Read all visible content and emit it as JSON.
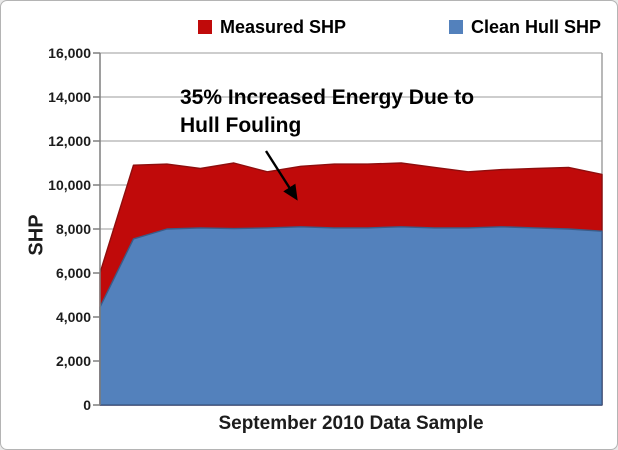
{
  "legend": {
    "measured_label": "Measured SHP",
    "clean_label": "Clean Hull SHP"
  },
  "chart_data": {
    "type": "area",
    "title": "",
    "xlabel": "September 2010 Data Sample",
    "ylabel": "SHP",
    "ylim": [
      0,
      16000
    ],
    "y_ticks": [
      "0",
      "2,000",
      "4,000",
      "6,000",
      "8,000",
      "10,000",
      "12,000",
      "14,000",
      "16,000"
    ],
    "y_tick_values": [
      0,
      2000,
      4000,
      6000,
      8000,
      10000,
      12000,
      14000,
      16000
    ],
    "x": [
      1,
      2,
      3,
      4,
      5,
      6,
      7,
      8,
      9,
      10,
      11,
      12,
      13,
      14,
      15,
      16
    ],
    "x_tick_labels": [],
    "grid": "horizontal",
    "legend_position": "top",
    "series": [
      {
        "name": "Measured SHP",
        "color": "#c00a0a",
        "stroke": "#8e0e0e",
        "values": [
          6000,
          10900,
          10950,
          10750,
          11000,
          10600,
          10850,
          10950,
          10950,
          11000,
          10800,
          10600,
          10700,
          10750,
          10800,
          10480
        ]
      },
      {
        "name": "Clean Hull SHP",
        "color": "#5381bc",
        "stroke": "#3a5c88",
        "values": [
          4450,
          7550,
          8000,
          8050,
          8020,
          8050,
          8100,
          8050,
          8050,
          8100,
          8050,
          8050,
          8100,
          8050,
          8000,
          7900
        ]
      }
    ],
    "annotation": {
      "line1": "35% Increased Energy Due to",
      "line2": "Hull Fouling"
    }
  }
}
